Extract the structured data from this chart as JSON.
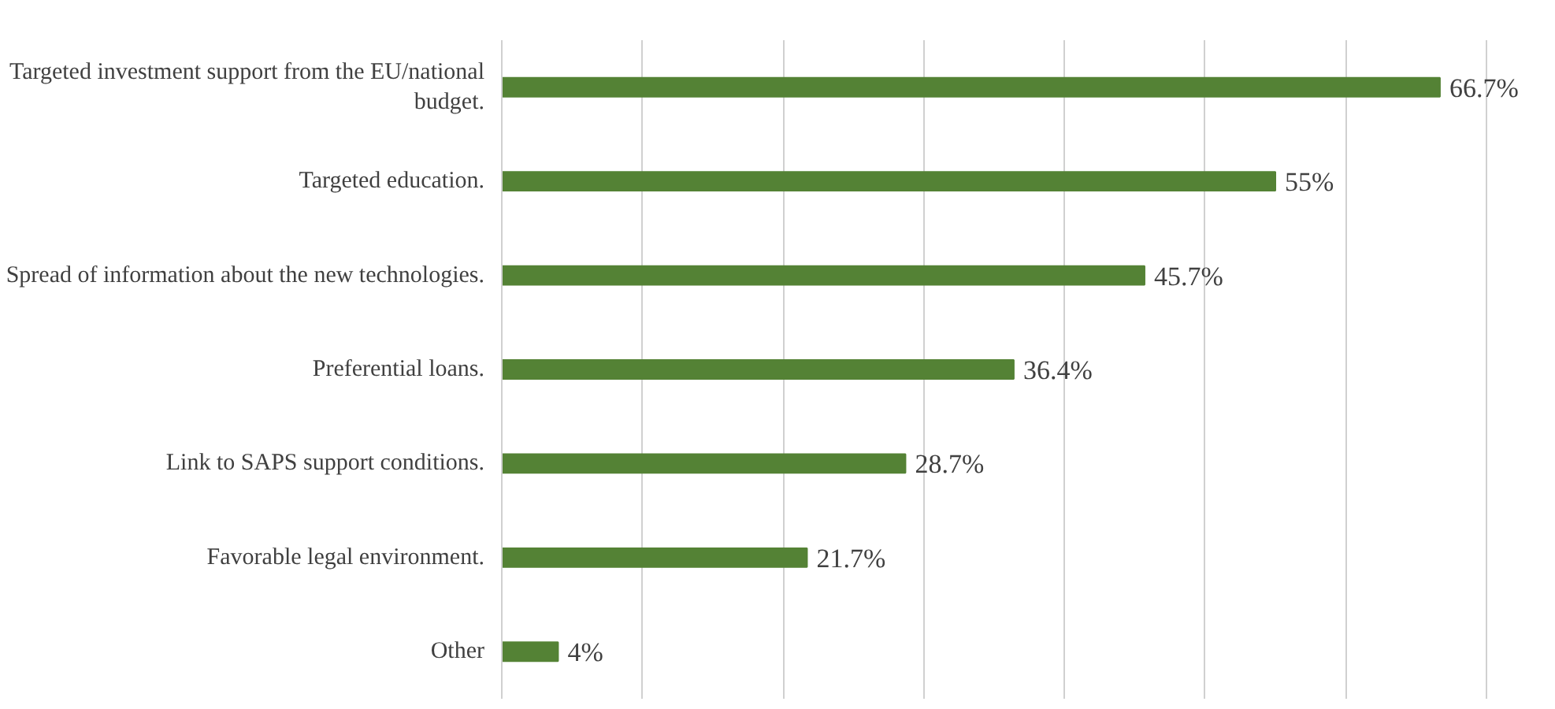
{
  "chart_data": {
    "type": "bar",
    "orientation": "horizontal",
    "categories": [
      "Targeted investment support from the EU/national budget.",
      "Targeted education.",
      "Spread of information about the new technologies.",
      "Preferential loans.",
      "Link to SAPS support conditions.",
      "Favorable legal environment.",
      "Other"
    ],
    "values": [
      66.7,
      55,
      45.7,
      36.4,
      28.7,
      21.7,
      4
    ],
    "value_labels": [
      "66.7%",
      "55%",
      "45.7%",
      "36.4%",
      "28.7%",
      "21.7%",
      "4%"
    ],
    "color": "#548235",
    "grid": "x",
    "tick_labels": "y"
  }
}
